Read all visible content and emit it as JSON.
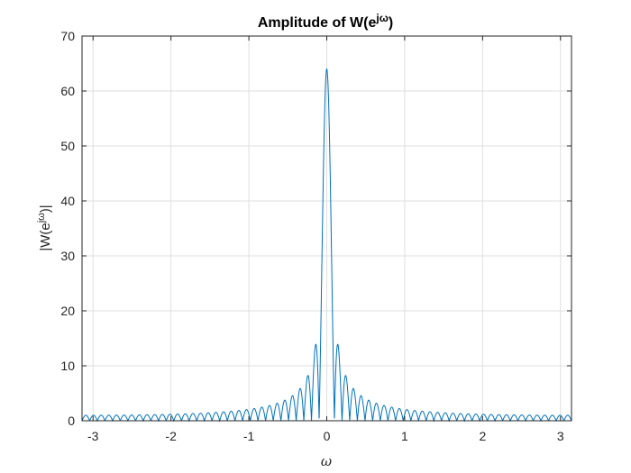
{
  "chart_data": {
    "type": "line",
    "title_base": "Amplitude of W(e",
    "title_sup": "jω",
    "title_end": ")",
    "xlabel": "ω",
    "ylabel_base": "|W(e",
    "ylabel_sup": "jω",
    "ylabel_end": ")|",
    "xlim": [
      -3.1416,
      3.1416
    ],
    "ylim": [
      0,
      70
    ],
    "xticks": [
      -3,
      -2,
      -1,
      0,
      1,
      2,
      3
    ],
    "yticks": [
      0,
      10,
      20,
      30,
      40,
      50,
      60,
      70
    ],
    "grid": true,
    "series": [
      {
        "color": "#0072BD",
        "function": "abs(sin(64*w/2)/sin(w/2))",
        "peak_value": 64,
        "first_sidelobe_value": 13.9
      }
    ]
  }
}
